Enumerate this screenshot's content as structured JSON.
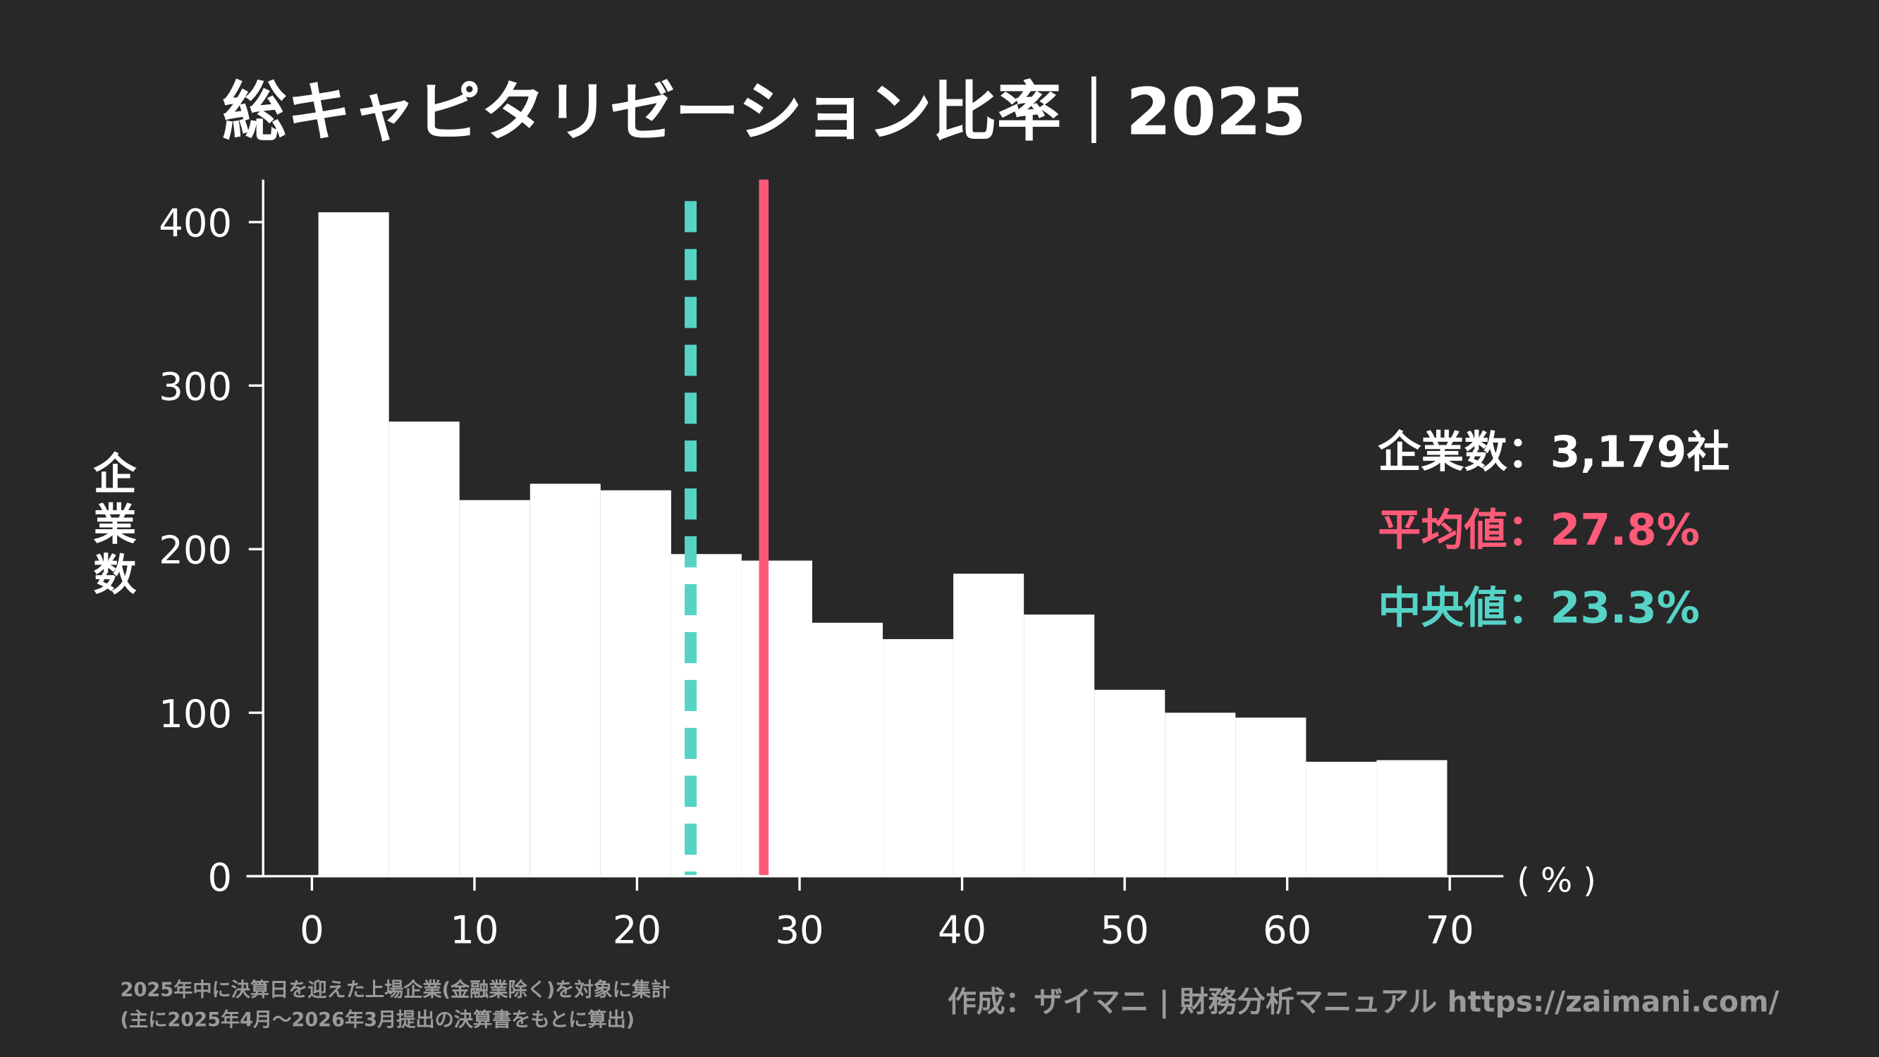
{
  "chart_data": {
    "type": "histogram",
    "title": "総キャピタリゼーション比率｜2025",
    "xlabel": "( % )",
    "ylabel": "企業数",
    "bins": [
      0.4,
      4.74,
      9.08,
      13.42,
      17.76,
      22.1,
      26.44,
      30.78,
      35.12,
      39.46,
      43.8,
      48.14,
      52.48,
      56.82,
      61.16,
      65.5,
      69.84
    ],
    "values": [
      406,
      278,
      230,
      240,
      236,
      197,
      193,
      155,
      145,
      185,
      160,
      114,
      100,
      97,
      70,
      71
    ],
    "color": "#ffffff",
    "xlim": [
      -3,
      73.3
    ],
    "ylim": [
      0,
      426
    ],
    "xticks": [
      0,
      10,
      20,
      30,
      40,
      50,
      60,
      70
    ],
    "yticks": [
      0,
      100,
      200,
      300,
      400
    ],
    "mean": {
      "value": 27.8,
      "label": "平均値：27.8%",
      "color": "#ff5a78"
    },
    "median": {
      "value": 23.3,
      "label": "中央値：23.3%",
      "color": "#56d3c7"
    },
    "count_label": "企業数：3,179社",
    "notes": [
      "2025年中に決算日を迎えた上場企業(金融業除く)を対象に集計",
      "(主に2025年4月～2026年3月提出の決算書をもとに算出)"
    ],
    "credit": "作成：ザイマニ | 財務分析マニュアル https://zaimani.com/"
  }
}
